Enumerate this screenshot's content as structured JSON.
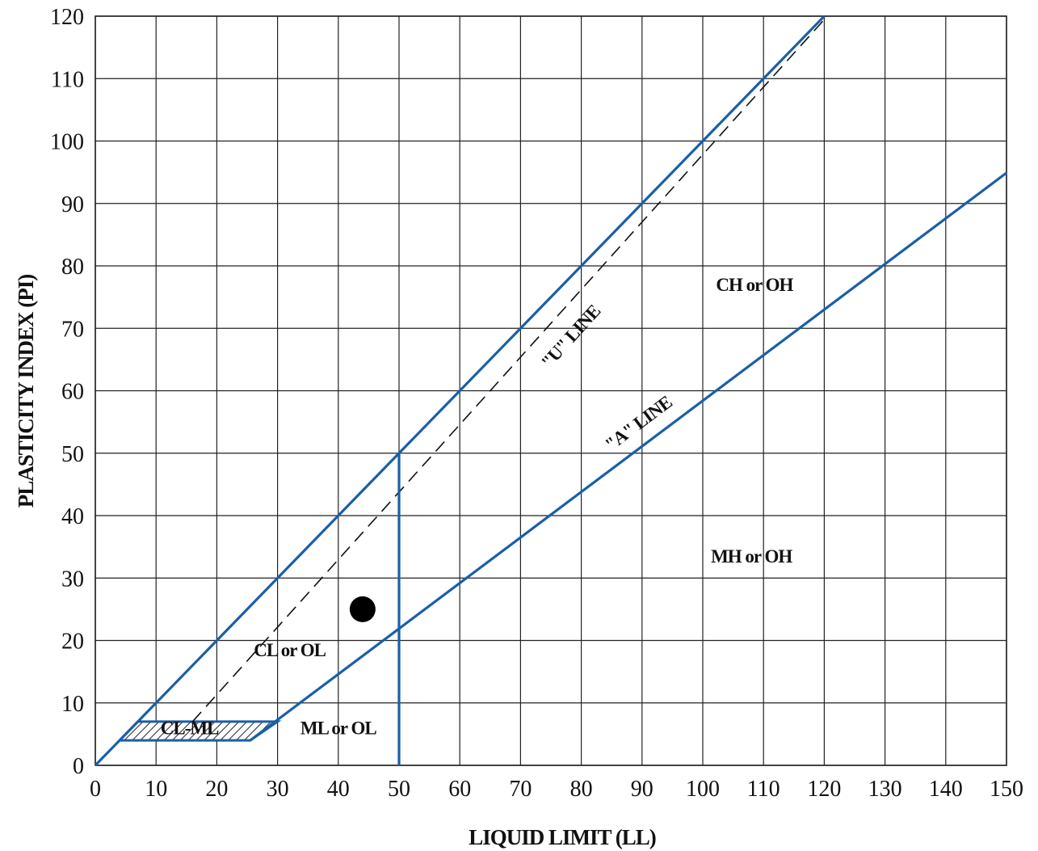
{
  "chart_data": {
    "type": "line",
    "title": "",
    "xlabel": "LIQUID LIMIT (LL)",
    "ylabel": "PLASTICITY INDEX (PI)",
    "xlim": [
      0,
      150
    ],
    "ylim": [
      0,
      120
    ],
    "x_ticks": [
      0,
      10,
      20,
      30,
      40,
      50,
      60,
      70,
      80,
      90,
      100,
      110,
      120,
      130,
      140,
      150
    ],
    "y_ticks": [
      0,
      10,
      20,
      30,
      40,
      50,
      60,
      70,
      80,
      90,
      100,
      110,
      120
    ],
    "grid": true,
    "series": [
      {
        "name": "\"A\" LINE",
        "style": "solid",
        "x": [
          25.5,
          30,
          150
        ],
        "y": [
          4,
          7.3,
          94.9
        ]
      },
      {
        "name": "\"U\" LINE",
        "style": "dashed",
        "x": [
          16,
          120.5
        ],
        "y": [
          7,
          120
        ]
      },
      {
        "name": "",
        "style": "solid",
        "x": [
          0,
          120
        ],
        "y": [
          0,
          120
        ]
      },
      {
        "name": "",
        "style": "solid",
        "x": [
          50,
          50
        ],
        "y": [
          0,
          50
        ]
      }
    ],
    "cl_ml_zone": {
      "x": [
        4,
        7,
        30,
        25.5
      ],
      "y": [
        4,
        7,
        7,
        4
      ]
    },
    "points": [
      {
        "x": 44,
        "y": 25
      }
    ],
    "annotations": [
      {
        "text": "CH or OH",
        "x": 108.5,
        "y": 76
      },
      {
        "text": "MH or OH",
        "x": 108,
        "y": 32.5
      },
      {
        "text": "CL or OL",
        "x": 32,
        "y": 17.5
      },
      {
        "text": "ML or OL",
        "x": 40,
        "y": 5
      },
      {
        "text": "CL-ML",
        "x": 15.5,
        "y": 5
      },
      {
        "text": "\"U\" LINE",
        "x": 79,
        "y": 68
      },
      {
        "text": "\"A\" LINE",
        "x": 90,
        "y": 54
      }
    ],
    "colors": {
      "boundary": "#1a5fa6",
      "grid": "#222222",
      "point": "#000000",
      "text": "#111111"
    }
  }
}
